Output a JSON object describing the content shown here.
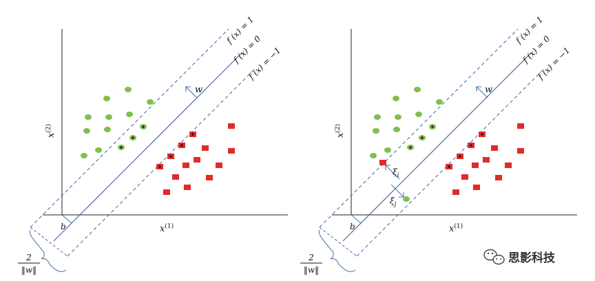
{
  "colors": {
    "axis": "#222222",
    "hyperplane": "#4a6fa5",
    "margin": "#4a6fa5",
    "positive_point": "#7fbf4d",
    "negative_point": "#e02b2b",
    "support_dot": "#111111",
    "brace": "#4a6fa5"
  },
  "labels": {
    "x1": "x",
    "x1_sup": "(1)",
    "x2": "x",
    "x2_sup": "(2)",
    "f_pos": "f (x) = 1",
    "f_zero": "f (x) = 0",
    "f_neg": "f (x) = −1",
    "w": "w",
    "b": "b",
    "margin_num": "2",
    "margin_den": "‖w‖",
    "xi_i": "ξ",
    "xi_i_sub": "i",
    "xi_j": "ξ",
    "xi_j_sub": "j"
  },
  "watermark": {
    "text": "思影科技",
    "icon": "wechat-icon"
  },
  "panels": [
    {
      "name": "hard-margin",
      "show_slack": false
    },
    {
      "name": "soft-margin",
      "show_slack": true
    }
  ]
}
